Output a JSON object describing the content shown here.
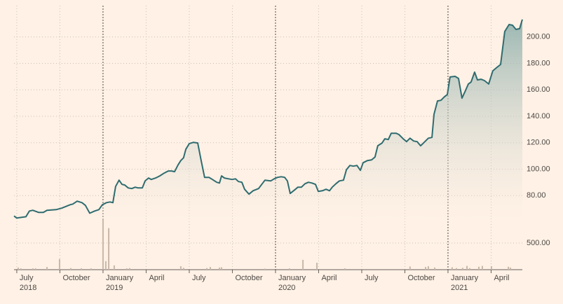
{
  "chart_data": [
    {
      "type": "area",
      "color": "#2f6c70",
      "xlim": [
        2018.484,
        2021.431
      ],
      "ylim": [
        60,
        220
      ],
      "grid": true,
      "yticks": [
        {
          "value": 80,
          "label": "80.00"
        },
        {
          "value": 100,
          "label": "100.00"
        },
        {
          "value": 120,
          "label": "120.00"
        },
        {
          "value": 140,
          "label": "140.00"
        },
        {
          "value": 160,
          "label": "160.00"
        },
        {
          "value": 180,
          "label": "180.00"
        },
        {
          "value": 200,
          "label": "200.00"
        }
      ],
      "x": [
        2018.484,
        2018.5,
        2018.553,
        2018.573,
        2018.593,
        2018.626,
        2018.654,
        2018.675,
        2018.728,
        2018.76,
        2018.809,
        2018.825,
        2018.85,
        2018.878,
        2018.898,
        2018.923,
        2018.951,
        2018.976,
        2018.996,
        2019.02,
        2019.041,
        2019.057,
        2019.073,
        2019.093,
        2019.11,
        2019.126,
        2019.146,
        2019.167,
        2019.187,
        2019.203,
        2019.228,
        2019.244,
        2019.264,
        2019.28,
        2019.305,
        2019.329,
        2019.354,
        2019.378,
        2019.398,
        2019.415,
        2019.435,
        2019.451,
        2019.467,
        2019.48,
        2019.5,
        2019.524,
        2019.549,
        2019.569,
        2019.589,
        2019.614,
        2019.634,
        2019.659,
        2019.675,
        2019.687,
        2019.703,
        2019.728,
        2019.748,
        2019.768,
        2019.785,
        2019.805,
        2019.821,
        2019.846,
        2019.87,
        2019.902,
        2019.923,
        2019.939,
        2019.972,
        2019.992,
        2020.012,
        2020.033,
        2020.053,
        2020.069,
        2020.085,
        2020.11,
        2020.13,
        2020.15,
        2020.171,
        2020.191,
        2020.211,
        2020.232,
        2020.248,
        2020.272,
        2020.293,
        2020.313,
        2020.329,
        2020.35,
        2020.37,
        2020.394,
        2020.411,
        2020.431,
        2020.451,
        2020.472,
        2020.492,
        2020.508,
        2020.533,
        2020.557,
        2020.577,
        2020.593,
        2020.618,
        2020.634,
        2020.654,
        2020.671,
        2020.699,
        2020.715,
        2020.74,
        2020.76,
        2020.78,
        2020.801,
        2020.821,
        2020.841,
        2020.862,
        2020.886,
        2020.907,
        2020.919,
        2020.939,
        2020.959,
        2020.98,
        2020.996,
        2021.012,
        2021.041,
        2021.061,
        2021.081,
        2021.098,
        2021.118,
        2021.134,
        2021.154,
        2021.171,
        2021.191,
        2021.211,
        2021.236,
        2021.26,
        2021.28,
        2021.305,
        2021.329,
        2021.354,
        2021.374,
        2021.394,
        2021.415,
        2021.431
      ],
      "values": [
        64.6,
        63,
        64,
        68.3,
        68.9,
        67.3,
        67.3,
        68.9,
        69.4,
        70.5,
        73.1,
        73.6,
        75.8,
        74.7,
        72.6,
        66.7,
        68.3,
        69.4,
        73.1,
        74.7,
        75.2,
        74.7,
        86.9,
        91.7,
        88.5,
        88,
        85.8,
        85.3,
        86.4,
        85.8,
        85.8,
        91.1,
        93.3,
        92.2,
        93.3,
        94.9,
        97,
        98.6,
        98.6,
        98.1,
        103.3,
        106.5,
        108.6,
        115,
        119.3,
        120.3,
        119.8,
        106.5,
        93.8,
        93.8,
        92.2,
        90.1,
        89.5,
        94.9,
        93.3,
        92.7,
        92.2,
        92.7,
        90.6,
        90.1,
        84.8,
        81.1,
        83.7,
        85.3,
        89,
        91.7,
        91.1,
        92.7,
        93.8,
        94.3,
        93.8,
        91.1,
        81.6,
        84.2,
        86.4,
        86.4,
        89,
        90.1,
        89.5,
        88.5,
        83.2,
        83.7,
        84.8,
        83.7,
        86.4,
        89,
        91.1,
        91.7,
        99.6,
        102.8,
        102.3,
        102.8,
        99.1,
        104.9,
        106.5,
        107,
        109.2,
        117.7,
        119.8,
        123,
        122.4,
        127.2,
        127.2,
        126.2,
        123,
        120.8,
        123.4,
        121.3,
        120.8,
        117.7,
        120.3,
        123.4,
        124,
        141.5,
        151.6,
        152.1,
        154.8,
        156.4,
        169.7,
        170.2,
        168.6,
        153.7,
        158.5,
        164.4,
        165.9,
        173.4,
        167.5,
        168,
        167,
        164.4,
        174.4,
        176.6,
        179.2,
        204.1,
        209.4,
        208.9,
        205.7,
        206.3,
        213.2
      ]
    },
    {
      "type": "bar",
      "color": "#c9b8aa",
      "xlim": [
        2018.484,
        2021.431
      ],
      "ylim": [
        0,
        1000
      ],
      "yticks": [
        {
          "value": 500,
          "label": "500.00"
        }
      ],
      "xticks": [
        {
          "value": 2018.5,
          "label": "July"
        },
        {
          "value": 2018.75,
          "label": "October"
        },
        {
          "value": 2019,
          "label": "January"
        },
        {
          "value": 2019.25,
          "label": "April"
        },
        {
          "value": 2019.5,
          "label": "July"
        },
        {
          "value": 2019.75,
          "label": "October"
        },
        {
          "value": 2020,
          "label": "January"
        },
        {
          "value": 2020.25,
          "label": "April"
        },
        {
          "value": 2020.5,
          "label": "July"
        },
        {
          "value": 2020.75,
          "label": "October"
        },
        {
          "value": 2021,
          "label": "January"
        },
        {
          "value": 2021.25,
          "label": "April"
        }
      ],
      "year_labels": [
        {
          "value": 2018.5,
          "label": "2018"
        },
        {
          "value": 2019,
          "label": "2019"
        },
        {
          "value": 2020,
          "label": "2020"
        },
        {
          "value": 2021,
          "label": "2021"
        }
      ],
      "x": [
        2018.508,
        2018.524,
        2018.593,
        2018.609,
        2018.675,
        2018.748,
        2018.813,
        2018.874,
        2018.931,
        2019.0,
        2019.016,
        2019.033,
        2019.065,
        2019.138,
        2019.154,
        2019.451,
        2019.467,
        2019.602,
        2019.622,
        2019.675,
        2019.687,
        2019.939,
        2020.081,
        2020.159,
        2020.24,
        2020.402,
        2020.78,
        2020.87,
        2020.886,
        2020.923,
        2021.024,
        2021.049,
        2021.085,
        2021.11,
        2021.126,
        2021.179,
        2021.199,
        2021.252,
        2021.35,
        2021.362
      ],
      "values": [
        40,
        25,
        25,
        25,
        50,
        200,
        30,
        25,
        25,
        950,
        160,
        780,
        80,
        25,
        30,
        65,
        35,
        30,
        50,
        40,
        45,
        20,
        25,
        185,
        130,
        25,
        60,
        50,
        65,
        40,
        45,
        30,
        35,
        70,
        30,
        55,
        70,
        65,
        55,
        40
      ]
    }
  ]
}
